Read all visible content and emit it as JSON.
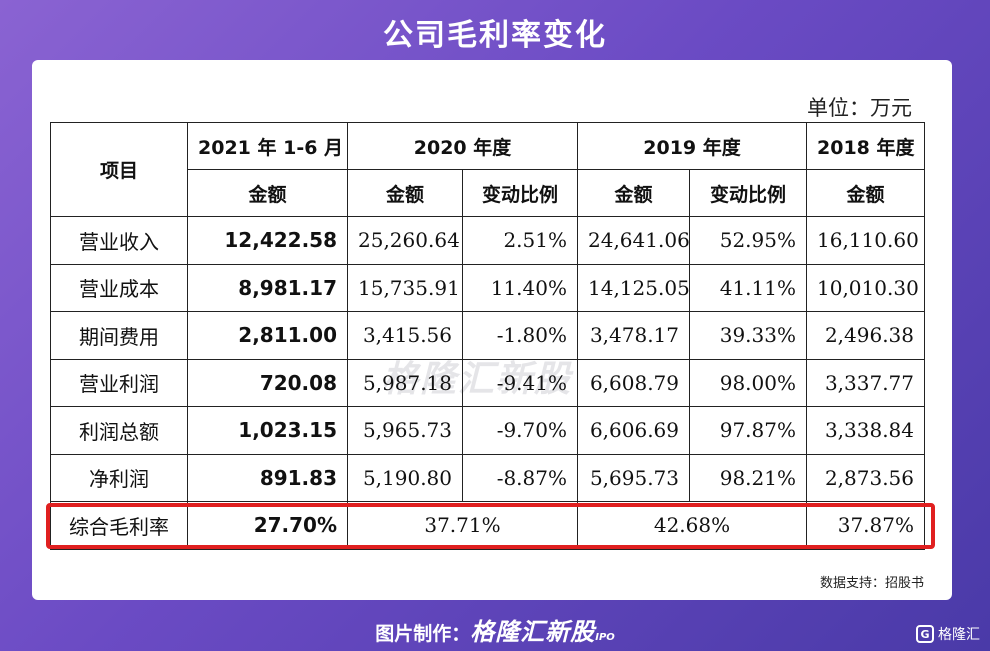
{
  "title": "公司毛利率变化",
  "unit": "单位：万元",
  "header": {
    "item": "项目",
    "periods": [
      "2021 年 1-6 月",
      "2020 年度",
      "2019 年度",
      "2018 年度"
    ],
    "amount": "金额",
    "change": "变动比例"
  },
  "rows": [
    {
      "label": "营业收入",
      "v2021": "12,422.58",
      "v2020": "25,260.64",
      "c2020": "2.51%",
      "v2019": "24,641.06",
      "c2019": "52.95%",
      "v2018": "16,110.60"
    },
    {
      "label": "营业成本",
      "v2021": "8,981.17",
      "v2020": "15,735.91",
      "c2020": "11.40%",
      "v2019": "14,125.05",
      "c2019": "41.11%",
      "v2018": "10,010.30"
    },
    {
      "label": "期间费用",
      "v2021": "2,811.00",
      "v2020": "3,415.56",
      "c2020": "-1.80%",
      "v2019": "3,478.17",
      "c2019": "39.33%",
      "v2018": "2,496.38"
    },
    {
      "label": "营业利润",
      "v2021": "720.08",
      "v2020": "5,987.18",
      "c2020": "-9.41%",
      "v2019": "6,608.79",
      "c2019": "98.00%",
      "v2018": "3,337.77"
    },
    {
      "label": "利润总额",
      "v2021": "1,023.15",
      "v2020": "5,965.73",
      "c2020": "-9.70%",
      "v2019": "6,606.69",
      "c2019": "97.87%",
      "v2018": "3,338.84"
    },
    {
      "label": "净利润",
      "v2021": "891.83",
      "v2020": "5,190.80",
      "c2020": "-8.87%",
      "v2019": "5,695.73",
      "c2019": "98.21%",
      "v2018": "2,873.56"
    }
  ],
  "margin_row": {
    "label": "综合毛利率",
    "v2021": "27.70%",
    "v2020": "37.71%",
    "v2019": "42.68%",
    "v2018": "37.87%"
  },
  "watermark": "格隆汇新股",
  "source": "数据支持：招股书",
  "footer": {
    "prefix": "图片制作：",
    "brand": "格隆汇新股",
    "ipo": "IPO"
  },
  "corner_logo": {
    "mark": "G",
    "text": "格隆汇"
  },
  "colors": {
    "highlight": "#e02020",
    "background": "#6b4bc4"
  }
}
